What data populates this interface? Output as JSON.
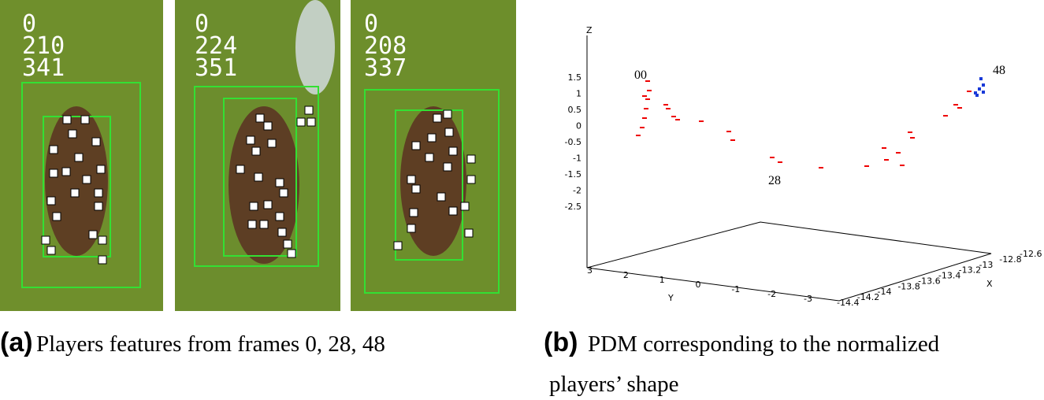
{
  "panel_a": {
    "frames": [
      {
        "lines": [
          "0",
          "210",
          "341"
        ]
      },
      {
        "lines": [
          "0",
          "224",
          "351"
        ]
      },
      {
        "lines": [
          "0",
          "208",
          "337"
        ]
      }
    ],
    "caption_label": "(a)",
    "caption": "Players features from frames 0, 28, 48"
  },
  "panel_b": {
    "axis_labels": {
      "z": "Z",
      "y": "Y",
      "x": "X"
    },
    "zticks": [
      "1.5",
      "1",
      "0.5",
      "0",
      "-0.5",
      "-1",
      "-1.5",
      "-2",
      "-2.5"
    ],
    "yticks": [
      "3",
      "2",
      "1",
      "0",
      "-1",
      "-2",
      "-3"
    ],
    "xticks": [
      "-14.4",
      "-14.2",
      "-14",
      "-13.8",
      "-13.6",
      "-13.4",
      "-13.2",
      "-13",
      "-12.8",
      "-12.6"
    ],
    "annotations": [
      "00",
      "28",
      "48"
    ],
    "caption_label": "(b)",
    "caption_lines": [
      "PDM corresponding to the normalized",
      "players’ shape"
    ]
  }
}
